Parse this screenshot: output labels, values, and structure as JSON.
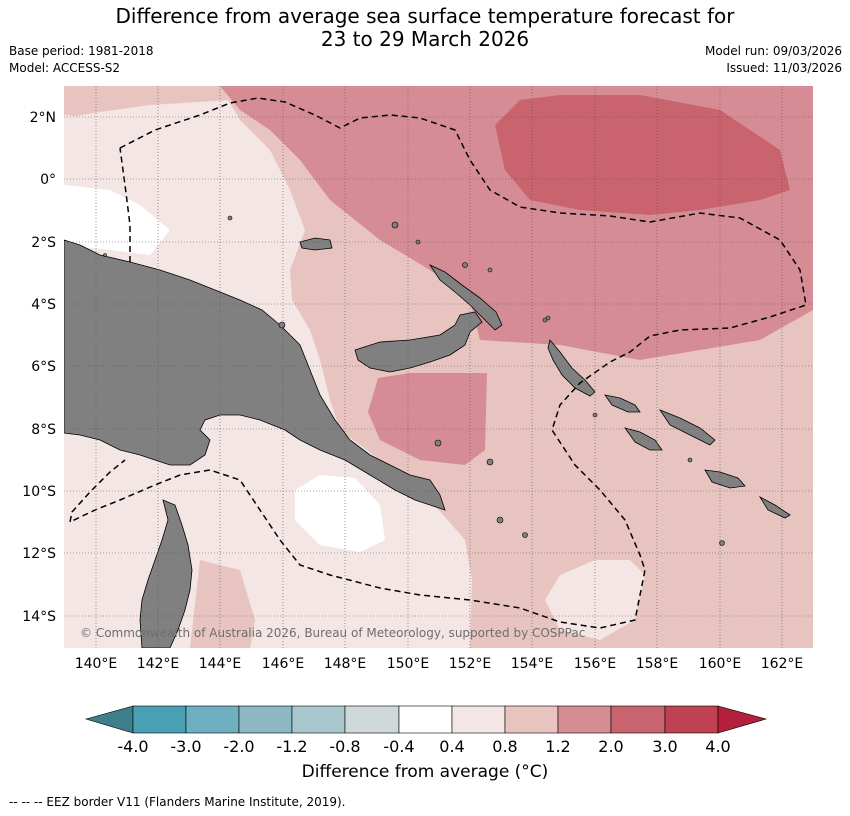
{
  "header": {
    "title_line1": "Difference from average sea surface temperature forecast for",
    "title_line2": "23 to 29 March 2026",
    "base_period": "Base period: 1981-2018",
    "model": "Model: ACCESS-S2",
    "model_run": "Model run: 09/03/2026",
    "issued": "Issued: 11/03/2026"
  },
  "map": {
    "lat_labels": [
      "2°N",
      "0°",
      "2°S",
      "4°S",
      "6°S",
      "8°S",
      "10°S",
      "12°S",
      "14°S"
    ],
    "lon_labels": [
      "140°E",
      "142°E",
      "144°E",
      "146°E",
      "148°E",
      "150°E",
      "152°E",
      "154°E",
      "156°E",
      "158°E",
      "160°E",
      "162°E"
    ],
    "copyright": "© Commonwealth of Australia 2026, Bureau of Meteorology, supported by COSPPac",
    "colors": {
      "land": "#808080",
      "c_0_4_0_8": "#f4e6e4",
      "c_0_8_1_2": "#e8c4c1",
      "c_1_2_2_0": "#d68c95",
      "c_2_0_3_0": "#c9636e"
    }
  },
  "colorbar": {
    "colors": [
      "#3e7f8c",
      "#48a0b2",
      "#6eafc0",
      "#8db7c2",
      "#a9c8cd",
      "#cfd9d9",
      "#ffffff",
      "#f4e6e4",
      "#e8c4c1",
      "#d68c95",
      "#c9636e",
      "#bf4252",
      "#b3203b"
    ],
    "tick_labels": [
      "-4.0",
      "-3.0",
      "-2.0",
      "-1.2",
      "-0.8",
      "-0.4",
      "0.4",
      "0.8",
      "1.2",
      "2.0",
      "3.0",
      "4.0"
    ],
    "title": "Difference from average (°C)"
  },
  "footnote": "--  --  -- EEZ border V11 (Flanders Marine Institute, 2019)."
}
